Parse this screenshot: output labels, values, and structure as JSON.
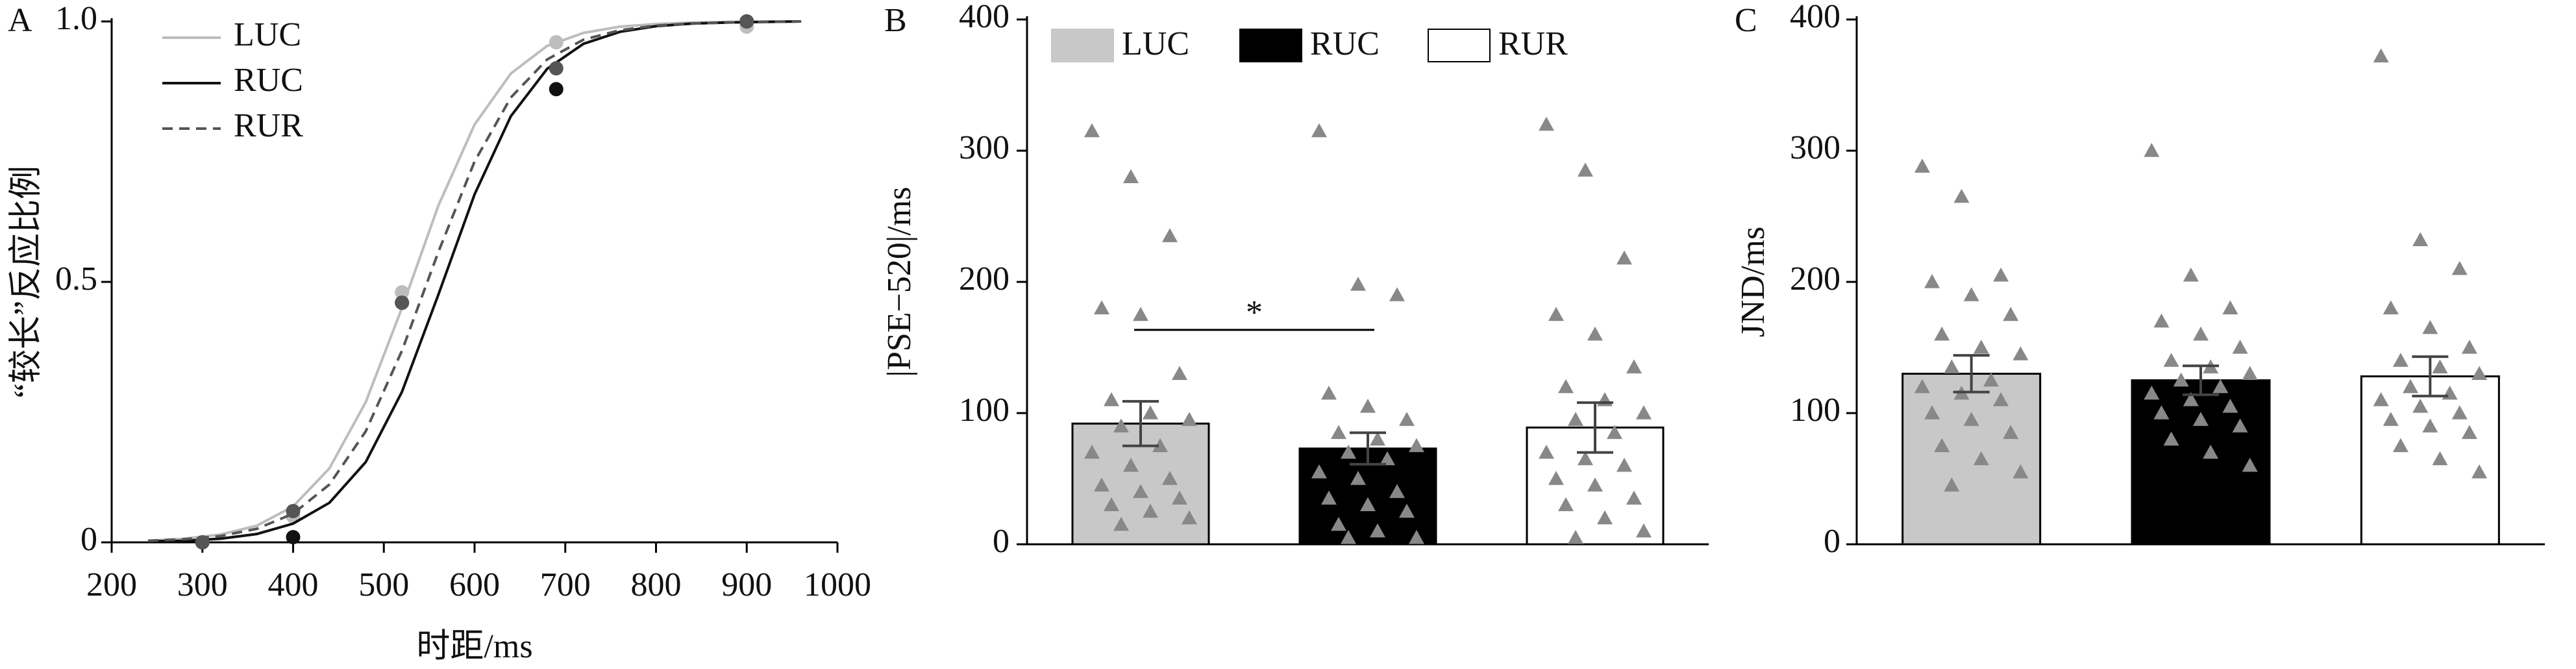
{
  "chart_data": [
    {
      "type": "line",
      "panel_label": "A",
      "x_label": "时距/ms",
      "y_label": "“较长”反应比例",
      "x": [
        240,
        280,
        320,
        360,
        400,
        440,
        480,
        520,
        560,
        600,
        640,
        680,
        720,
        760,
        800,
        840,
        880,
        920,
        960
      ],
      "xlim": [
        200,
        1000
      ],
      "xticks": [
        200,
        300,
        400,
        500,
        600,
        700,
        800,
        900,
        1000
      ],
      "ylim": [
        0,
        1
      ],
      "yticks": [
        0,
        0.5,
        {
          "value": 1,
          "label": "1.0"
        }
      ],
      "point_x": [
        300,
        400,
        520,
        690,
        900
      ],
      "legend": "upper left",
      "series": [
        {
          "name": "LUC",
          "color": "#bdbdbd",
          "line_style": "solid",
          "values": [
            0.003,
            0.007,
            0.015,
            0.032,
            0.069,
            0.142,
            0.269,
            0.45,
            0.646,
            0.802,
            0.9,
            0.953,
            0.978,
            0.99,
            0.995,
            0.998,
            0.999,
            1,
            1
          ],
          "point_values": [
            0,
            0.05,
            0.48,
            0.96,
            0.99
          ]
        },
        {
          "name": "RUC",
          "color": "#111111",
          "line_style": "solid",
          "values": [
            0.002,
            0.003,
            0.007,
            0.016,
            0.036,
            0.076,
            0.154,
            0.289,
            0.475,
            0.668,
            0.818,
            0.909,
            0.957,
            0.98,
            0.991,
            0.996,
            0.998,
            0.999,
            1
          ],
          "point_values": [
            0,
            0.01,
            0.46,
            0.87,
            1
          ]
        },
        {
          "name": "RUR",
          "color": "#555555",
          "line_style": "dashed",
          "values": [
            0.003,
            0.006,
            0.012,
            0.026,
            0.055,
            0.111,
            0.213,
            0.368,
            0.557,
            0.731,
            0.854,
            0.927,
            0.965,
            0.983,
            0.992,
            0.996,
            0.998,
            0.999,
            1
          ],
          "point_values": [
            0,
            0.06,
            0.46,
            0.91,
            1
          ]
        }
      ]
    },
    {
      "type": "bar",
      "panel_label": "B",
      "y_label": "|PSE−520|/ms",
      "ylim": [
        0,
        400
      ],
      "yticks": [
        0,
        100,
        200,
        300,
        400
      ],
      "legend": "upper left",
      "annotation": "*",
      "point_color": "#888888",
      "series": [
        {
          "name": "LUC",
          "color": "#c8c8c8",
          "values": [
            92
          ],
          "errors": [
            17
          ],
          "points": [
            315,
            280,
            235,
            180,
            175,
            130,
            110,
            100,
            95,
            90,
            75,
            70,
            60,
            50,
            45,
            40,
            35,
            30,
            25,
            20,
            15
          ]
        },
        {
          "name": "RUC",
          "color": "#000000",
          "values": [
            73
          ],
          "errors": [
            12
          ],
          "points": [
            315,
            198,
            190,
            115,
            105,
            95,
            85,
            80,
            75,
            70,
            65,
            55,
            50,
            40,
            35,
            30,
            25,
            15,
            10,
            5,
            5
          ]
        },
        {
          "name": "RUR",
          "color": "#ffffff",
          "values": [
            89
          ],
          "errors": [
            19
          ],
          "points": [
            320,
            285,
            218,
            175,
            160,
            135,
            120,
            110,
            100,
            95,
            85,
            70,
            65,
            60,
            50,
            45,
            35,
            30,
            20,
            10,
            5
          ]
        }
      ]
    },
    {
      "type": "bar",
      "panel_label": "C",
      "y_label": "JND/ms",
      "ylim": [
        0,
        400
      ],
      "yticks": [
        0,
        100,
        200,
        300,
        400
      ],
      "legend": false,
      "point_color": "#888888",
      "series": [
        {
          "name": "LUC",
          "color": "#c8c8c8",
          "values": [
            130
          ],
          "errors": [
            14
          ],
          "points": [
            288,
            265,
            205,
            200,
            190,
            175,
            160,
            150,
            145,
            135,
            125,
            120,
            115,
            110,
            100,
            95,
            85,
            75,
            65,
            55,
            45
          ]
        },
        {
          "name": "RUC",
          "color": "#000000",
          "values": [
            125
          ],
          "errors": [
            11
          ],
          "points": [
            300,
            205,
            180,
            170,
            160,
            150,
            140,
            135,
            130,
            125,
            120,
            115,
            110,
            105,
            100,
            95,
            90,
            80,
            70,
            60
          ]
        },
        {
          "name": "RUR",
          "color": "#ffffff",
          "values": [
            128
          ],
          "errors": [
            15
          ],
          "points": [
            372,
            232,
            210,
            180,
            165,
            150,
            140,
            135,
            130,
            120,
            115,
            110,
            105,
            100,
            95,
            90,
            85,
            75,
            65,
            55
          ]
        }
      ]
    }
  ]
}
